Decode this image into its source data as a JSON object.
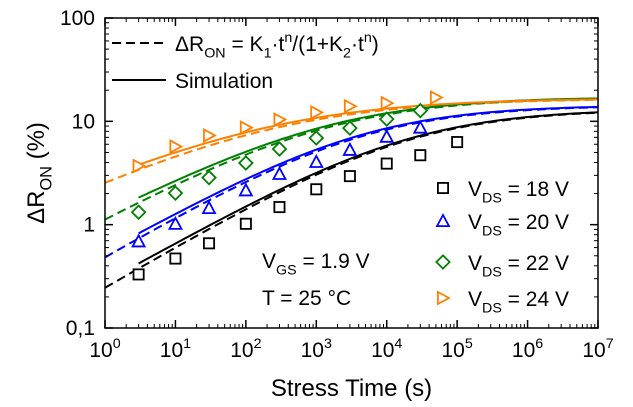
{
  "chart_data": {
    "type": "scatter",
    "xscale": "log",
    "yscale": "log",
    "xlim": [
      1,
      10000000
    ],
    "ylim": [
      0.1,
      100
    ],
    "xlabel": "Stress Time (s)",
    "ylabel": {
      "main": "ΔR",
      "sub": "ON",
      "unit": "(%)"
    },
    "xticks": [
      {
        "value": 1,
        "base": "10",
        "exp": "0"
      },
      {
        "value": 10,
        "base": "10",
        "exp": "1"
      },
      {
        "value": 100,
        "base": "10",
        "exp": "2"
      },
      {
        "value": 1000,
        "base": "10",
        "exp": "3"
      },
      {
        "value": 10000,
        "base": "10",
        "exp": "4"
      },
      {
        "value": 100000,
        "base": "10",
        "exp": "5"
      },
      {
        "value": 1000000,
        "base": "10",
        "exp": "6"
      },
      {
        "value": 10000000,
        "base": "10",
        "exp": "7"
      }
    ],
    "yticks": [
      {
        "value": 0.1,
        "label": "0,1"
      },
      {
        "value": 1,
        "label": "1"
      },
      {
        "value": 10,
        "label": "10"
      },
      {
        "value": 100,
        "label": "100"
      }
    ],
    "legend_top": [
      {
        "style": "dashed",
        "parts": [
          "ΔR",
          "ON",
          " = K",
          "1",
          "·t",
          "n",
          "/(1+K",
          "2",
          "·t",
          "n",
          ")"
        ]
      },
      {
        "style": "solid",
        "text": "Simulation"
      }
    ],
    "annotations": [
      {
        "parts": [
          "V",
          "GS",
          " = 1.9 V"
        ]
      },
      {
        "text": "T = 25 °C"
      }
    ],
    "series": [
      {
        "name_parts": [
          "V",
          "DS",
          " = 18 V"
        ],
        "marker": "square",
        "color": "#000000",
        "x": [
          3,
          10,
          30,
          100,
          300,
          1000,
          3000,
          10000,
          30000,
          100000
        ],
        "y": [
          0.33,
          0.47,
          0.66,
          1.02,
          1.48,
          2.2,
          2.95,
          3.9,
          4.7,
          6.3
        ],
        "fit_K1": 0.2496,
        "fit_K2": 0.019,
        "fit_n": 0.4
      },
      {
        "name_parts": [
          "V",
          "DS",
          " = 20 V"
        ],
        "marker": "triangle-up",
        "color": "#0000ff",
        "x": [
          3,
          10,
          30,
          100,
          300,
          1000,
          3000,
          10000,
          30000
        ],
        "y": [
          0.69,
          1.02,
          1.45,
          2.15,
          3.1,
          4.05,
          5.3,
          7.1,
          8.7
        ],
        "fit_K1": 0.5,
        "fit_K2": 0.035,
        "fit_n": 0.4
      },
      {
        "name_parts": [
          "V",
          "DS",
          " = 22 V"
        ],
        "marker": "diamond",
        "color": "#008000",
        "x": [
          3,
          10,
          30,
          100,
          300,
          1000,
          3000,
          10000,
          30000
        ],
        "y": [
          1.32,
          2.02,
          2.85,
          3.95,
          5.4,
          6.9,
          8.6,
          10.5,
          12.7
        ],
        "fit_K1": 1.2,
        "fit_K2": 0.07,
        "fit_n": 0.37
      },
      {
        "name_parts": [
          "V",
          "DS",
          " = 24 V"
        ],
        "marker": "triangle-right",
        "color": "#ff8000",
        "x": [
          3,
          10,
          30,
          100,
          300,
          1000,
          3000,
          10000,
          50000
        ],
        "y": [
          3.7,
          5.7,
          7.3,
          8.7,
          10.4,
          12.2,
          14.0,
          15.0,
          17.0
        ],
        "fit_K1": 3.0,
        "fit_K2": 0.18,
        "fit_n": 0.32
      }
    ]
  }
}
